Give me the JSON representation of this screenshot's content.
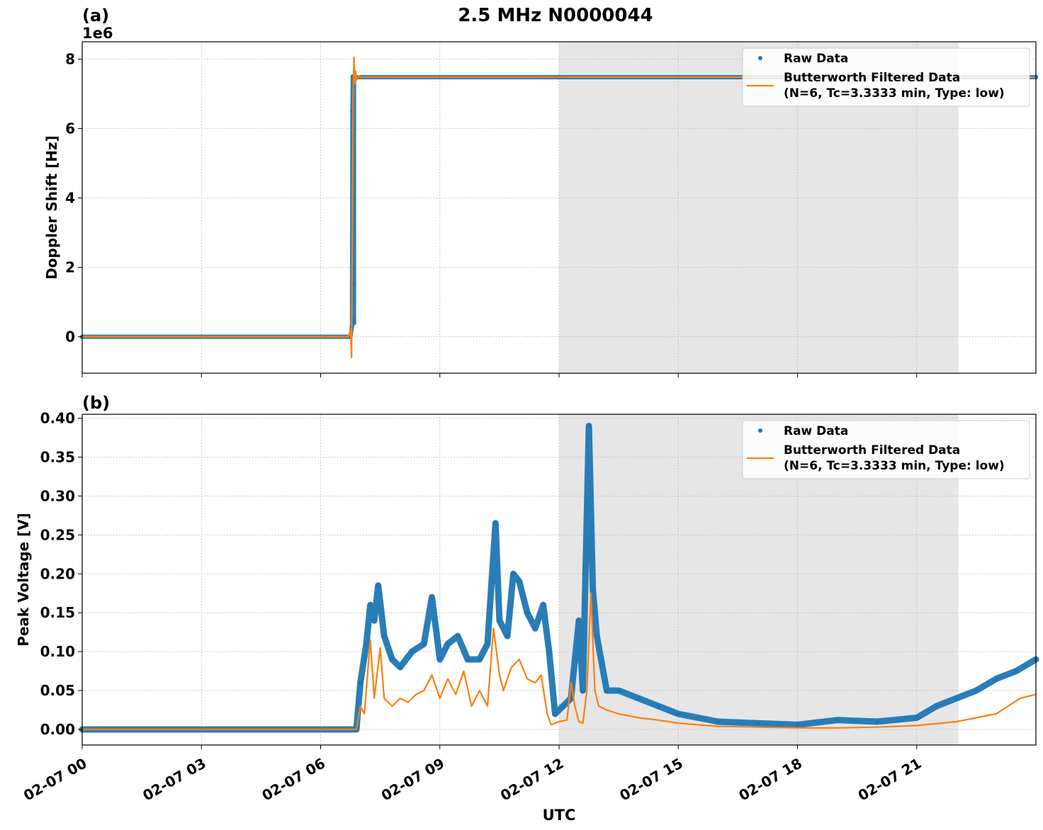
{
  "figure": {
    "title": "2.5 MHz N0000044",
    "xlabel": "UTC",
    "x_tick_labels": [
      "02-07 00",
      "02-07 03",
      "02-07 06",
      "02-07 09",
      "02-07 12",
      "02-07 15",
      "02-07 18",
      "02-07 21"
    ],
    "shaded_interval_hours": [
      12.0,
      22.05
    ]
  },
  "chart_data": [
    {
      "type": "scatter",
      "panel_label": "(a)",
      "ylabel": "Doppler Shift [Hz]",
      "y_offset_label": "1e6",
      "x_unit": "hours since 02-07 00:00 UTC",
      "xlim": [
        0,
        24
      ],
      "ylim": [
        -1.05,
        8.5
      ],
      "y_ticks": [
        0,
        2,
        4,
        6,
        8
      ],
      "y_tick_labels": [
        "0",
        "2",
        "4",
        "6",
        "8"
      ],
      "grid": true,
      "legend": {
        "placement": "top-right",
        "raw_label": "Raw Data",
        "filtered_label_line1": "Butterworth Filtered Data",
        "filtered_label_line2": "(N=6, Tc=3.3333 min, Type: low)"
      },
      "colors": {
        "raw": "#1f77b4",
        "filtered": "#ff7f0e",
        "shade": "#e6e6e6",
        "grid": "#b0b0b0"
      },
      "series": [
        {
          "name": "Raw Data",
          "x": [
            0,
            6.5,
            6.75,
            6.79,
            6.8,
            6.81,
            6.82,
            6.83,
            6.84,
            6.84,
            6.85,
            6.9,
            12,
            18,
            24
          ],
          "y": [
            0,
            0,
            0,
            0.3,
            6.5,
            7.5,
            1.5,
            0.5,
            0.4,
            7.5,
            7.5,
            7.48,
            7.48,
            7.48,
            7.48
          ]
        },
        {
          "name": "Butterworth Filtered Data",
          "x": [
            0,
            6.7,
            6.75,
            6.78,
            6.8,
            6.82,
            6.84,
            6.86,
            6.88,
            6.9,
            6.95,
            7.0,
            12,
            24
          ],
          "y": [
            0,
            0,
            0.2,
            -0.6,
            3.5,
            7.0,
            8.05,
            7.3,
            7.65,
            7.4,
            7.52,
            7.48,
            7.48,
            7.48
          ]
        }
      ]
    },
    {
      "type": "scatter",
      "panel_label": "(b)",
      "ylabel": "Peak Voltage [V]",
      "x_unit": "hours since 02-07 00:00 UTC",
      "xlim": [
        0,
        24
      ],
      "ylim": [
        -0.02,
        0.405
      ],
      "y_ticks": [
        0,
        0.05,
        0.1,
        0.15,
        0.2,
        0.25,
        0.3,
        0.35,
        0.4
      ],
      "y_tick_labels": [
        "0.00",
        "0.05",
        "0.10",
        "0.15",
        "0.20",
        "0.25",
        "0.30",
        "0.35",
        "0.40"
      ],
      "grid": true,
      "legend": {
        "placement": "top-right",
        "raw_label": "Raw Data",
        "filtered_label_line1": "Butterworth Filtered Data",
        "filtered_label_line2": "(N=6, Tc=3.3333 min, Type: low)"
      },
      "colors": {
        "raw": "#1f77b4",
        "filtered": "#ff7f0e",
        "shade": "#e6e6e6",
        "grid": "#b0b0b0"
      },
      "series": [
        {
          "name": "Raw Data",
          "x": [
            0,
            6.9,
            7.0,
            7.15,
            7.25,
            7.35,
            7.45,
            7.6,
            7.8,
            8.0,
            8.3,
            8.6,
            8.8,
            9.0,
            9.2,
            9.45,
            9.7,
            10.0,
            10.2,
            10.4,
            10.5,
            10.7,
            10.85,
            11.0,
            11.2,
            11.4,
            11.6,
            11.75,
            11.9,
            12.1,
            12.3,
            12.5,
            12.6,
            12.75,
            12.85,
            12.95,
            13.2,
            13.5,
            14.0,
            14.5,
            15.0,
            16.0,
            17.0,
            18.0,
            19.0,
            20.0,
            21.0,
            21.5,
            22.0,
            22.5,
            23.0,
            23.5,
            24.0
          ],
          "y": [
            0,
            0,
            0.06,
            0.11,
            0.16,
            0.14,
            0.185,
            0.12,
            0.09,
            0.08,
            0.1,
            0.11,
            0.17,
            0.09,
            0.11,
            0.12,
            0.09,
            0.09,
            0.11,
            0.265,
            0.14,
            0.12,
            0.2,
            0.19,
            0.15,
            0.13,
            0.16,
            0.1,
            0.02,
            0.03,
            0.04,
            0.14,
            0.05,
            0.39,
            0.18,
            0.12,
            0.05,
            0.05,
            0.04,
            0.03,
            0.02,
            0.01,
            0.008,
            0.006,
            0.012,
            0.01,
            0.015,
            0.03,
            0.04,
            0.05,
            0.065,
            0.075,
            0.09
          ]
        },
        {
          "name": "Butterworth Filtered Data",
          "x": [
            0,
            6.9,
            7.0,
            7.1,
            7.25,
            7.35,
            7.5,
            7.6,
            7.8,
            8.0,
            8.2,
            8.4,
            8.6,
            8.8,
            9.0,
            9.2,
            9.4,
            9.6,
            9.8,
            10.0,
            10.2,
            10.35,
            10.5,
            10.6,
            10.8,
            11.0,
            11.2,
            11.4,
            11.55,
            11.7,
            11.8,
            12.0,
            12.2,
            12.3,
            12.4,
            12.5,
            12.6,
            12.7,
            12.8,
            12.9,
            13.0,
            13.2,
            13.5,
            14.0,
            14.5,
            15.0,
            16.0,
            17.0,
            18.0,
            19.0,
            20.0,
            21.0,
            22.0,
            22.5,
            23.0,
            23.3,
            23.6,
            24.0
          ],
          "y": [
            0,
            0,
            0.03,
            0.02,
            0.115,
            0.04,
            0.105,
            0.04,
            0.03,
            0.04,
            0.035,
            0.045,
            0.05,
            0.07,
            0.04,
            0.065,
            0.045,
            0.075,
            0.03,
            0.05,
            0.03,
            0.13,
            0.07,
            0.05,
            0.08,
            0.09,
            0.065,
            0.06,
            0.07,
            0.02,
            0.006,
            0.01,
            0.012,
            0.06,
            0.03,
            0.01,
            0.008,
            0.05,
            0.175,
            0.05,
            0.03,
            0.025,
            0.02,
            0.015,
            0.012,
            0.008,
            0.004,
            0.003,
            0.002,
            0.002,
            0.003,
            0.005,
            0.01,
            0.015,
            0.02,
            0.03,
            0.04,
            0.045
          ]
        }
      ]
    }
  ]
}
